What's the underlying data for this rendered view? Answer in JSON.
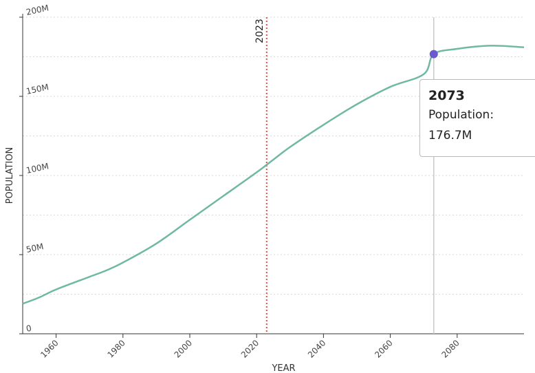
{
  "chart_data": {
    "type": "line",
    "xlabel": "YEAR",
    "ylabel": "POPULATION",
    "xlim": [
      1950,
      2100
    ],
    "ylim": [
      0,
      200
    ],
    "x_ticks": [
      1960,
      1980,
      2000,
      2020,
      2040,
      2060,
      2080
    ],
    "y_ticks": [
      {
        "value": 0,
        "label": "0"
      },
      {
        "value": 50,
        "label": "50M"
      },
      {
        "value": 100,
        "label": "100M"
      },
      {
        "value": 150,
        "label": "150M"
      },
      {
        "value": 200,
        "label": "200M"
      }
    ],
    "grid": "horizontal dotted",
    "series": [
      {
        "color": "#6fb8a3",
        "x": [
          1950,
          1955,
          1960,
          1970,
          1975,
          1980,
          1990,
          2000,
          2010,
          2020,
          2025,
          2030,
          2040,
          2050,
          2060,
          2070,
          2073,
          2080,
          2090,
          2100
        ],
        "y": [
          19,
          23,
          28,
          36,
          40,
          45,
          57,
          72,
          87,
          102,
          110,
          118,
          132,
          145,
          156,
          164,
          176.7,
          180,
          182,
          181
        ]
      }
    ],
    "reference_line": {
      "x": 2023,
      "label": "2023",
      "color": "#e74c3c"
    },
    "highlight": {
      "x": 2073,
      "y": 176.7,
      "color": "#6a5acd"
    },
    "tooltip": {
      "title": "2073",
      "label": "Population:",
      "value": "176.7M"
    }
  }
}
